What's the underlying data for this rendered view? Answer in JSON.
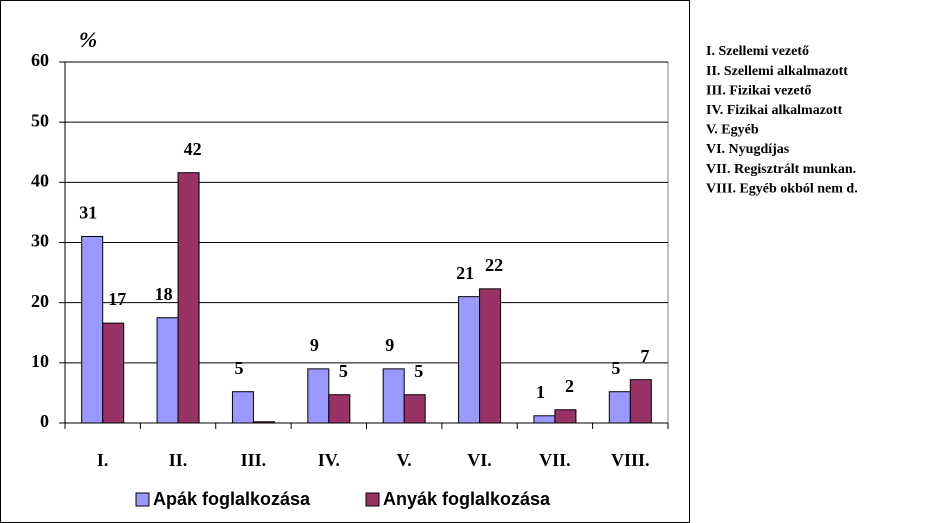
{
  "chart_data": {
    "type": "bar",
    "y_unit": "%",
    "categories": [
      "I.",
      "II.",
      "III.",
      "IV.",
      "V.",
      "VI.",
      "VII.",
      "VIII."
    ],
    "series": [
      {
        "name": "Apák foglalkozása",
        "color": "#9999ff",
        "values": [
          31,
          17.5,
          5.2,
          9,
          9,
          21,
          1.2,
          5.2
        ],
        "value_labels": [
          "31",
          "18",
          "5",
          "9",
          "9",
          "21",
          "1",
          "5"
        ]
      },
      {
        "name": "Anyák foglalkozása",
        "color": "#993366",
        "values": [
          16.6,
          41.6,
          0.2,
          4.7,
          4.7,
          22.3,
          2.2,
          7.2
        ],
        "value_labels": [
          "17",
          "42",
          null,
          "5",
          "5",
          "22",
          "2",
          "7"
        ]
      }
    ],
    "ylim": [
      0,
      60
    ],
    "yticks": [
      0,
      10,
      20,
      30,
      40,
      50,
      60
    ],
    "grid": true,
    "notes": [
      "I. Szellemi vezető",
      "II. Szellemi alkalmazott",
      "III. Fizikai vezető",
      "IV. Fizikai alkalmazott",
      "V. Egyéb",
      "VI. Nyugdíjas",
      "VII. Regisztrált munkan.",
      "VIII. Egyéb okból nem d."
    ]
  }
}
